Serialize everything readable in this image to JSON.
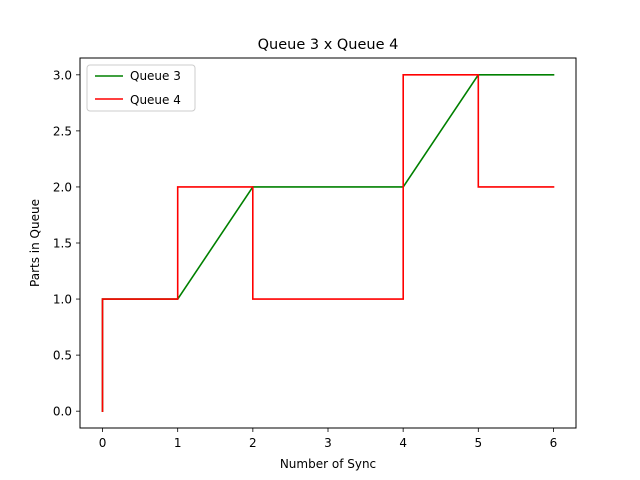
{
  "chart_data": {
    "type": "line",
    "title": "Queue 3 x Queue 4",
    "xlabel": "Number of Sync",
    "ylabel": "Parts in Queue",
    "xlim": [
      -0.3,
      6.3
    ],
    "ylim": [
      -0.15,
      3.15
    ],
    "xticks": [
      0,
      1,
      2,
      3,
      4,
      5,
      6
    ],
    "xtick_labels": [
      "0",
      "1",
      "2",
      "3",
      "4",
      "5",
      "6"
    ],
    "yticks": [
      0.0,
      0.5,
      1.0,
      1.5,
      2.0,
      2.5,
      3.0
    ],
    "ytick_labels": [
      "0.0",
      "0.5",
      "1.0",
      "1.5",
      "2.0",
      "2.5",
      "3.0"
    ],
    "grid": false,
    "legend_position": "top-left",
    "series": [
      {
        "name": "Queue 3",
        "color": "#008000",
        "x": [
          0,
          0,
          1,
          2,
          4,
          5,
          6
        ],
        "y": [
          0,
          1,
          1,
          2,
          2,
          3,
          3
        ]
      },
      {
        "name": "Queue 4",
        "color": "#ff0000",
        "x": [
          0,
          0,
          1,
          1,
          2,
          2,
          4,
          4,
          5,
          5,
          6
        ],
        "y": [
          0,
          1,
          1,
          2,
          2,
          1,
          1,
          3,
          3,
          2,
          2
        ]
      }
    ]
  }
}
